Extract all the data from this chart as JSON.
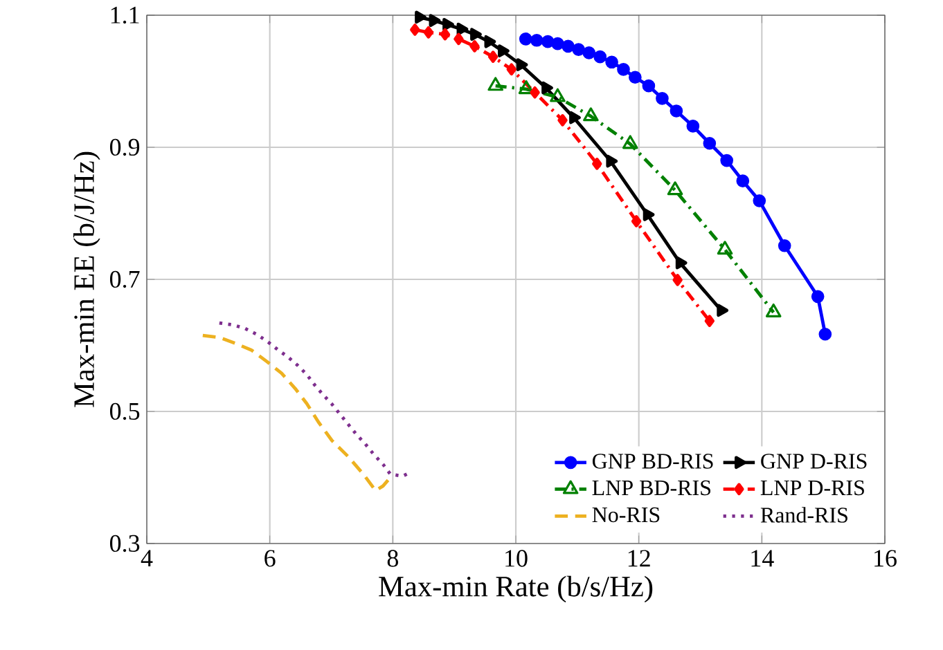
{
  "chart_data": {
    "type": "line",
    "xlabel": "Max-min Rate (b/s/Hz)",
    "ylabel": "Max-min EE (b/J/Hz)",
    "xlim": [
      4,
      16
    ],
    "xticks": [
      4,
      6,
      8,
      10,
      12,
      14,
      16
    ],
    "ylim": [
      0.3,
      1.1
    ],
    "yticks": [
      0.3,
      0.5,
      0.7,
      0.9,
      1.1
    ],
    "grid": true,
    "legend": "bottom right",
    "series": [
      {
        "name": "GNP BD-RIS",
        "color": "#0000ff",
        "marker": "circle",
        "line_style": "solid",
        "x": [
          10.16,
          10.34,
          10.52,
          10.68,
          10.85,
          11.02,
          11.19,
          11.37,
          11.56,
          11.75,
          11.94,
          12.16,
          12.38,
          12.61,
          12.88,
          13.15,
          13.43,
          13.69,
          13.96,
          14.37,
          14.91,
          15.03
        ],
        "values": [
          1.064,
          1.062,
          1.06,
          1.057,
          1.053,
          1.048,
          1.043,
          1.037,
          1.029,
          1.018,
          1.006,
          0.993,
          0.974,
          0.955,
          0.932,
          0.906,
          0.88,
          0.849,
          0.819,
          0.751,
          0.674,
          0.617
        ]
      },
      {
        "name": "GNP D-RIS",
        "color": "#000000",
        "marker": "triangle",
        "line_style": "solid",
        "x": [
          8.43,
          8.66,
          8.88,
          9.11,
          9.33,
          9.56,
          9.78,
          10.08,
          10.49,
          10.94,
          11.54,
          12.14,
          12.67,
          13.34
        ],
        "values": [
          1.097,
          1.092,
          1.086,
          1.079,
          1.071,
          1.06,
          1.046,
          1.025,
          0.99,
          0.945,
          0.879,
          0.798,
          0.725,
          0.653
        ]
      },
      {
        "name": "LNP BD-RIS",
        "color": "#008000",
        "marker": "triangle",
        "line_style": "dashdot",
        "x": [
          9.67,
          10.17,
          10.68,
          11.22,
          11.86,
          12.59,
          13.4,
          14.19
        ],
        "values": [
          0.993,
          0.988,
          0.976,
          0.947,
          0.905,
          0.835,
          0.745,
          0.65
        ]
      },
      {
        "name": "LNP D-RIS",
        "color": "#ff0000",
        "marker": "diamond",
        "line_style": "dashdot",
        "x": [
          8.36,
          8.58,
          8.85,
          9.07,
          9.33,
          9.63,
          9.93,
          10.31,
          10.76,
          11.32,
          11.96,
          12.63,
          13.15
        ],
        "values": [
          1.078,
          1.074,
          1.071,
          1.064,
          1.053,
          1.037,
          1.018,
          0.983,
          0.941,
          0.875,
          0.788,
          0.699,
          0.637
        ]
      },
      {
        "name": "No-RIS",
        "color": "#edb120",
        "marker": "none",
        "line_style": "dashed",
        "x": [
          4.91,
          5.18,
          5.44,
          5.7,
          5.96,
          6.19,
          6.41,
          6.6,
          6.79,
          7.01,
          7.27,
          7.53,
          7.72,
          7.84,
          7.97
        ],
        "values": [
          0.615,
          0.612,
          0.603,
          0.593,
          0.575,
          0.558,
          0.535,
          0.512,
          0.484,
          0.456,
          0.432,
          0.404,
          0.38,
          0.387,
          0.401
        ]
      },
      {
        "name": "Rand-RIS",
        "color": "#7e2f8e",
        "marker": "none",
        "line_style": "dotted",
        "x": [
          5.18,
          5.4,
          5.59,
          5.78,
          5.96,
          6.11,
          6.3,
          6.45,
          6.6,
          6.73,
          6.86,
          7.01,
          7.14,
          7.27,
          7.41,
          7.55,
          7.69,
          7.84,
          7.96,
          8.16,
          8.27
        ],
        "values": [
          0.634,
          0.631,
          0.626,
          0.617,
          0.606,
          0.595,
          0.582,
          0.57,
          0.556,
          0.54,
          0.526,
          0.511,
          0.496,
          0.481,
          0.465,
          0.451,
          0.435,
          0.42,
          0.405,
          0.402,
          0.407
        ]
      }
    ]
  }
}
